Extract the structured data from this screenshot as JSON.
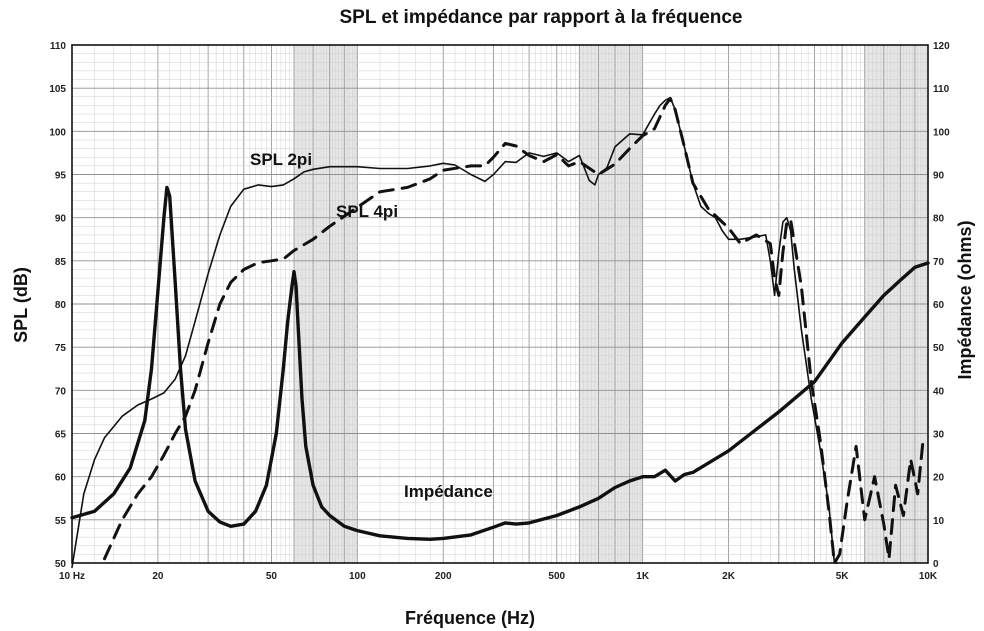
{
  "chart_data": {
    "type": "line",
    "title": "SPL et impédance par rapport à la fréquence",
    "xlabel": "Fréquence (Hz)",
    "ylabel": "SPL (dB)",
    "y2label": "Impédance (ohms)",
    "x_scale": "log",
    "xlim": [
      10,
      10000
    ],
    "ylim": [
      50,
      110
    ],
    "y2lim": [
      0,
      120
    ],
    "grid": true,
    "x_ticks": [
      {
        "value": 10,
        "label": "10 Hz"
      },
      {
        "value": 20,
        "label": "20"
      },
      {
        "value": 50,
        "label": "50"
      },
      {
        "value": 100,
        "label": "100"
      },
      {
        "value": 200,
        "label": "200"
      },
      {
        "value": 500,
        "label": "500"
      },
      {
        "value": 1000,
        "label": "1K"
      },
      {
        "value": 2000,
        "label": "2K"
      },
      {
        "value": 5000,
        "label": "5K"
      },
      {
        "value": 10000,
        "label": "10K"
      }
    ],
    "y_ticks": [
      "50",
      "55",
      "60",
      "65",
      "70",
      "75",
      "80",
      "85",
      "90",
      "95",
      "100",
      "105",
      "110"
    ],
    "y2_ticks": [
      "0",
      "10",
      "20",
      "30",
      "40",
      "50",
      "60",
      "70",
      "80",
      "90",
      "100",
      "110",
      "120"
    ],
    "annotations": [
      {
        "text": "SPL 2pi",
        "series": "SPL 2pi"
      },
      {
        "text": "SPL 4pi",
        "series": "SPL 4pi"
      },
      {
        "text": "Impédance",
        "series": "Impédance"
      }
    ],
    "series": [
      {
        "name": "SPL 2pi",
        "axis": "left",
        "style": "solid-thin",
        "x": [
          10,
          11,
          12,
          13,
          15,
          17,
          19,
          21,
          23,
          25,
          27,
          30,
          33,
          36,
          40,
          45,
          50,
          55,
          60,
          65,
          70,
          80,
          90,
          100,
          120,
          150,
          180,
          200,
          220,
          250,
          280,
          300,
          330,
          360,
          400,
          450,
          500,
          550,
          600,
          650,
          680,
          700,
          750,
          800,
          900,
          1000,
          1100,
          1150,
          1200,
          1250,
          1300,
          1400,
          1500,
          1600,
          1700,
          1800,
          1900,
          2000,
          2200,
          2500,
          2700,
          2800,
          2900,
          3000,
          3100,
          3200,
          3300,
          3400,
          3600,
          3900,
          4200,
          4500,
          4700,
          4800
        ],
        "y": [
          49.5,
          58,
          62,
          64.5,
          67,
          68.3,
          69,
          69.7,
          71.3,
          74,
          78,
          83.5,
          88,
          91.3,
          93.3,
          93.8,
          93.6,
          93.8,
          94.5,
          95.3,
          95.6,
          95.9,
          95.9,
          95.9,
          95.7,
          95.7,
          96,
          96.3,
          96.1,
          95,
          94.2,
          95,
          96.5,
          96.4,
          97.5,
          97.1,
          97.5,
          96.5,
          97.2,
          94.3,
          93.8,
          95,
          95.8,
          98.2,
          99.7,
          99.6,
          102,
          103,
          103.6,
          103.9,
          102.5,
          98.2,
          94,
          91.3,
          90.5,
          90,
          88.5,
          87.5,
          87.5,
          87.8,
          88,
          85,
          81,
          86,
          89.5,
          90,
          88.5,
          84,
          77,
          69,
          63,
          56.5,
          50,
          50
        ]
      },
      {
        "name": "SPL 4pi",
        "axis": "left",
        "style": "dashed",
        "x": [
          13,
          15,
          17,
          19,
          21,
          23,
          25,
          27,
          30,
          33,
          36,
          40,
          45,
          50,
          55,
          60,
          70,
          80,
          100,
          120,
          150,
          180,
          200,
          250,
          280,
          300,
          330,
          360,
          400,
          450,
          500,
          550,
          600,
          700,
          800,
          900,
          1000,
          1100,
          1200,
          1250,
          1300,
          1400,
          1500,
          1700,
          1900,
          2000,
          2200,
          2500,
          2800,
          2900,
          3000,
          3100,
          3200,
          3300,
          3600,
          3900,
          4200,
          4500,
          4700,
          4900,
          5200,
          5600,
          6000,
          6500,
          7000,
          7300,
          7700,
          8200,
          8700,
          9200,
          9600
        ],
        "y": [
          50.5,
          55,
          58,
          60,
          62.5,
          65,
          67,
          70,
          75.5,
          80,
          82.5,
          84,
          84.8,
          85,
          85.2,
          86.2,
          87.5,
          89,
          91.2,
          93,
          93.5,
          94.5,
          95.5,
          96,
          96,
          97,
          98.6,
          98.3,
          97.2,
          96.5,
          97.3,
          96,
          96.5,
          95,
          96.2,
          98,
          99.5,
          100.3,
          103,
          103.8,
          102.5,
          98.2,
          94,
          91,
          89.5,
          88.8,
          87,
          88,
          87,
          83,
          81,
          86,
          89.5,
          89.8,
          82,
          71,
          64,
          56,
          50,
          51,
          57,
          63.5,
          55,
          60,
          54.5,
          50.5,
          59,
          55.5,
          62,
          58,
          64
        ]
      },
      {
        "name": "Impédance",
        "axis": "right",
        "style": "solid-thick",
        "x": [
          10,
          12,
          14,
          16,
          18,
          19,
          20,
          21,
          21.5,
          22,
          23,
          24,
          25,
          27,
          30,
          33,
          36,
          40,
          44,
          48,
          52,
          55,
          57,
          59,
          60,
          61,
          62,
          64,
          66,
          70,
          75,
          80,
          90,
          100,
          120,
          150,
          180,
          200,
          250,
          300,
          330,
          360,
          400,
          500,
          600,
          700,
          800,
          900,
          1000,
          1100,
          1200,
          1300,
          1400,
          1500,
          2000,
          3000,
          4000,
          5000,
          6000,
          7000,
          8000,
          9000,
          10000
        ],
        "y": [
          10.5,
          12,
          16,
          22,
          33,
          45,
          63,
          80,
          87,
          85,
          65,
          45,
          31,
          19,
          12,
          9.5,
          8.5,
          9,
          12,
          18,
          30,
          45,
          56,
          64,
          67.5,
          64,
          55,
          38,
          27,
          18,
          13,
          11,
          8.5,
          7.5,
          6.3,
          5.7,
          5.5,
          5.7,
          6.5,
          8.3,
          9.3,
          9,
          9.3,
          11,
          13,
          15,
          17.5,
          19,
          20,
          20,
          21.5,
          19,
          20.5,
          21,
          26,
          35,
          42,
          51,
          57,
          62,
          65.5,
          68.5,
          69.5
        ]
      }
    ]
  }
}
